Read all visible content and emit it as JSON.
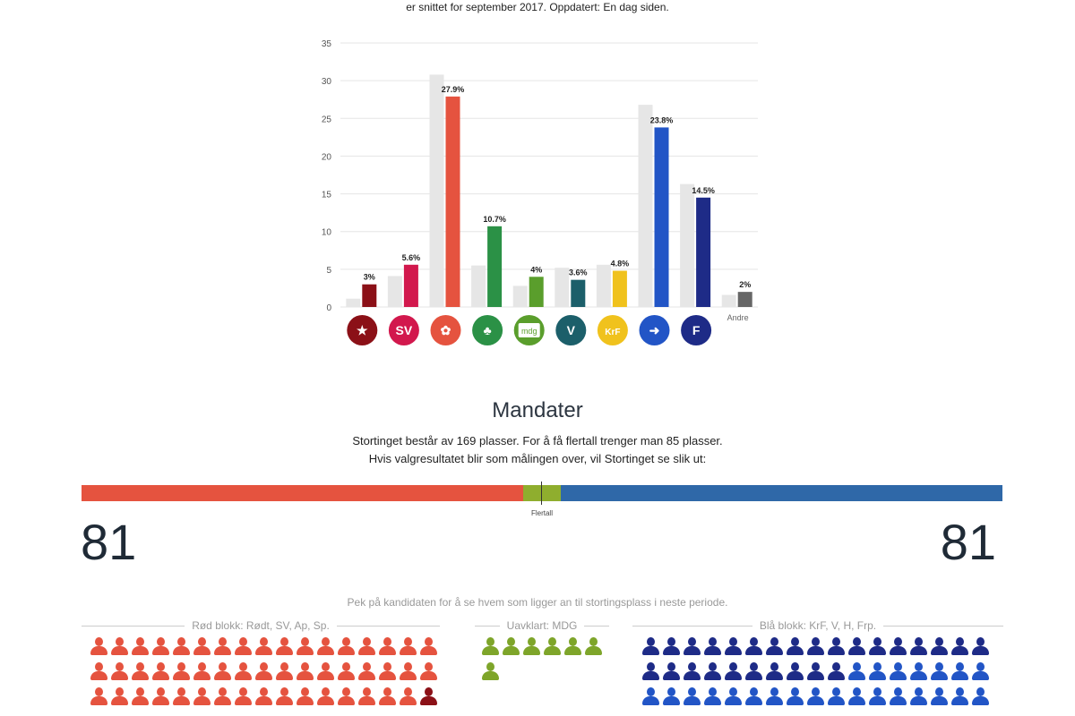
{
  "header": {
    "subtitle": "er snittet for september 2017. Oppdatert: En dag siden."
  },
  "chart_data": {
    "type": "bar",
    "ylim": [
      0,
      35
    ],
    "yticks": [
      0,
      5,
      10,
      15,
      20,
      25,
      30,
      35
    ],
    "grid": true,
    "categories": [
      "Rødt",
      "SV",
      "Ap",
      "Sp",
      "MDG",
      "V",
      "KrF",
      "H",
      "Frp",
      "Andre"
    ],
    "series": [
      {
        "values": [
          1.1,
          4.1,
          30.8,
          5.5,
          2.8,
          5.2,
          5.6,
          26.8,
          16.3,
          1.6
        ],
        "color": "#e6e6e6"
      },
      {
        "values": [
          3,
          5.6,
          27.9,
          10.7,
          4,
          3.6,
          4.8,
          23.8,
          14.5,
          2
        ]
      }
    ],
    "labels": [
      "3%",
      "5.6%",
      "27.9%",
      "10.7%",
      "4%",
      "3.6%",
      "4.8%",
      "23.8%",
      "14.5%",
      "2%"
    ],
    "colors": [
      "#8b1017",
      "#d2184d",
      "#e5533f",
      "#2b9146",
      "#5a9e2c",
      "#1c5f6a",
      "#f0c21d",
      "#2255c6",
      "#1e2b87",
      "#666666"
    ],
    "logos": [
      {
        "party": "Rødt",
        "text": "★",
        "icon": "rodt-star-icon"
      },
      {
        "party": "SV",
        "text": "SV",
        "icon": "sv-logo-icon"
      },
      {
        "party": "Ap",
        "text": "✿",
        "icon": "ap-rose-icon"
      },
      {
        "party": "Sp",
        "text": "♣",
        "icon": "sp-clover-icon"
      },
      {
        "party": "MDG",
        "text": "mdg",
        "icon": "mdg-logo-icon"
      },
      {
        "party": "V",
        "text": "V",
        "icon": "v-logo-icon"
      },
      {
        "party": "KrF",
        "text": "KrF",
        "icon": "krf-heart-icon"
      },
      {
        "party": "H",
        "text": "➜",
        "icon": "h-arrow-icon"
      },
      {
        "party": "Frp",
        "text": "F",
        "icon": "frp-logo-icon"
      },
      {
        "party": "Andre",
        "text": "Andre",
        "icon": ""
      }
    ]
  },
  "mandater": {
    "title": "Mandater",
    "description": "Stortinget består av 169 plasser. For å få flertall trenger man 85 plasser. Hvis valgresultatet blir som målingen over, vil Stortinget se slik ut:",
    "left_count": "81",
    "right_count": "81",
    "majority_label": "Flertall",
    "hint": "Pek på kandidaten for å se hvem som ligger an til stortingsplass i neste periode.",
    "bar_segments": [
      {
        "seats": 81,
        "color": "#e5533f"
      },
      {
        "seats": 7,
        "color": "#8fae2e"
      },
      {
        "seats": 81,
        "color": "#2f68a8"
      }
    ]
  },
  "blocks": {
    "red": {
      "label": "Rød blokk: Rødt, SV, Ap, Sp.",
      "rows": [
        [
          "#e5533f",
          "#e5533f",
          "#e5533f",
          "#e5533f",
          "#e5533f",
          "#e5533f",
          "#e5533f",
          "#e5533f",
          "#e5533f",
          "#e5533f",
          "#e5533f",
          "#e5533f",
          "#e5533f",
          "#e5533f",
          "#e5533f",
          "#e5533f",
          "#e5533f"
        ],
        [
          "#e5533f",
          "#e5533f",
          "#e5533f",
          "#e5533f",
          "#e5533f",
          "#e5533f",
          "#e5533f",
          "#e5533f",
          "#e5533f",
          "#e5533f",
          "#e5533f",
          "#e5533f",
          "#e5533f",
          "#e5533f",
          "#e5533f",
          "#e5533f",
          "#e5533f"
        ],
        [
          "#e5533f",
          "#e5533f",
          "#e5533f",
          "#e5533f",
          "#e5533f",
          "#e5533f",
          "#e5533f",
          "#e5533f",
          "#e5533f",
          "#e5533f",
          "#e5533f",
          "#e5533f",
          "#e5533f",
          "#e5533f",
          "#e5533f",
          "#e5533f",
          "#8b1017"
        ]
      ]
    },
    "uavklart": {
      "label": "Uavklart: MDG",
      "rows": [
        [
          "#7ea52a",
          "#7ea52a",
          "#7ea52a",
          "#7ea52a",
          "#7ea52a",
          "#7ea52a"
        ],
        [
          "#7ea52a"
        ]
      ]
    },
    "blue": {
      "label": "Blå blokk: KrF, V, H, Frp.",
      "rows": [
        [
          "#1e2b87",
          "#1e2b87",
          "#1e2b87",
          "#1e2b87",
          "#1e2b87",
          "#1e2b87",
          "#1e2b87",
          "#1e2b87",
          "#1e2b87",
          "#1e2b87",
          "#1e2b87",
          "#1e2b87",
          "#1e2b87",
          "#1e2b87",
          "#1e2b87",
          "#1e2b87",
          "#1e2b87"
        ],
        [
          "#1e2b87",
          "#1e2b87",
          "#1e2b87",
          "#1e2b87",
          "#1e2b87",
          "#1e2b87",
          "#1e2b87",
          "#1e2b87",
          "#1e2b87",
          "#1e2b87",
          "#2255c6",
          "#2255c6",
          "#2255c6",
          "#2255c6",
          "#2255c6",
          "#2255c6",
          "#2255c6"
        ],
        [
          "#2255c6",
          "#2255c6",
          "#2255c6",
          "#2255c6",
          "#2255c6",
          "#2255c6",
          "#2255c6",
          "#2255c6",
          "#2255c6",
          "#2255c6",
          "#2255c6",
          "#2255c6",
          "#2255c6",
          "#2255c6",
          "#2255c6",
          "#2255c6",
          "#2255c6"
        ]
      ]
    }
  }
}
